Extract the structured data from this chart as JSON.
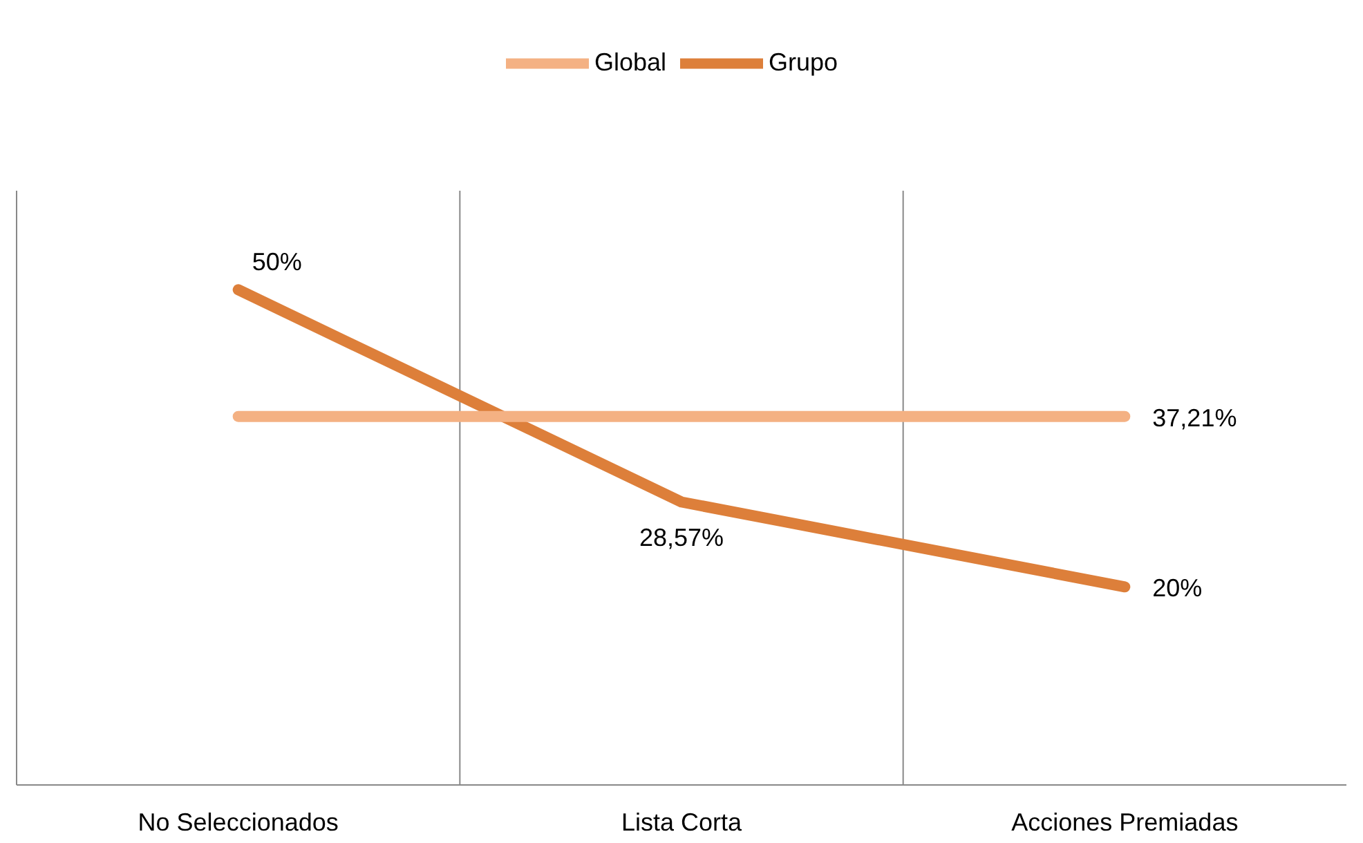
{
  "chart_data": {
    "type": "line",
    "categories": [
      "No Seleccionados",
      "Lista Corta",
      "Acciones Premiadas"
    ],
    "series": [
      {
        "name": "Grupo",
        "color": "#dd7f3a",
        "values": [
          50,
          28.57,
          20
        ],
        "value_labels": [
          "50%",
          "28,57%",
          "20%"
        ]
      },
      {
        "name": "Global",
        "color": "#f4b183",
        "values": [
          37.21,
          37.21,
          37.21
        ],
        "value_labels": [
          null,
          null,
          "37,21%"
        ]
      }
    ],
    "ylim": [
      0,
      60
    ],
    "grid": "x",
    "legend": "top",
    "tick_labels": "x",
    "marker": "none",
    "line_style": "solid"
  }
}
